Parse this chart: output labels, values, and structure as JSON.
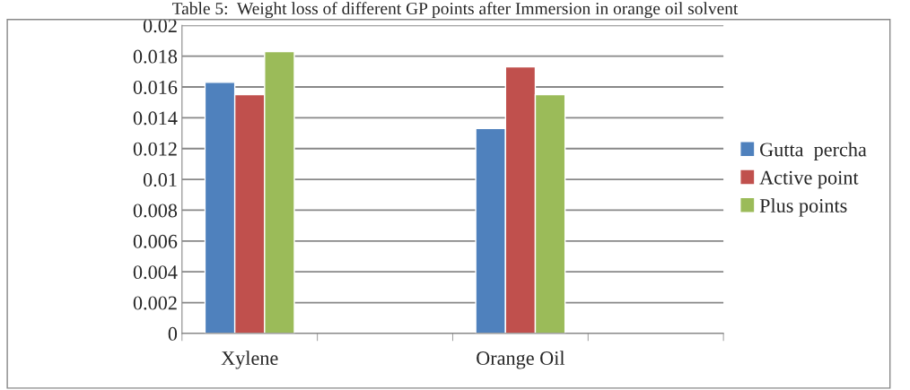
{
  "chart_data": {
    "type": "bar",
    "title": "Table 5:  Weight loss of different GP points after Immersion in orange oil solvent",
    "categories": [
      "Xylene",
      null,
      "Orange Oil",
      null
    ],
    "series": [
      {
        "name": "Gutta  percha",
        "color": "#4f81bd",
        "values": [
          0.0163,
          null,
          0.0133,
          null
        ]
      },
      {
        "name": "Active point",
        "color": "#c0504d",
        "values": [
          0.0155,
          null,
          0.0173,
          null
        ]
      },
      {
        "name": "Plus points",
        "color": "#9bbb59",
        "values": [
          0.0183,
          null,
          0.0155,
          null
        ]
      }
    ],
    "ylim": [
      0,
      0.02
    ],
    "yticks": [
      0,
      0.002,
      0.004,
      0.006,
      0.008,
      0.01,
      0.012,
      0.014,
      0.016,
      0.018,
      0.02
    ],
    "grid": "y",
    "legend": "right"
  }
}
